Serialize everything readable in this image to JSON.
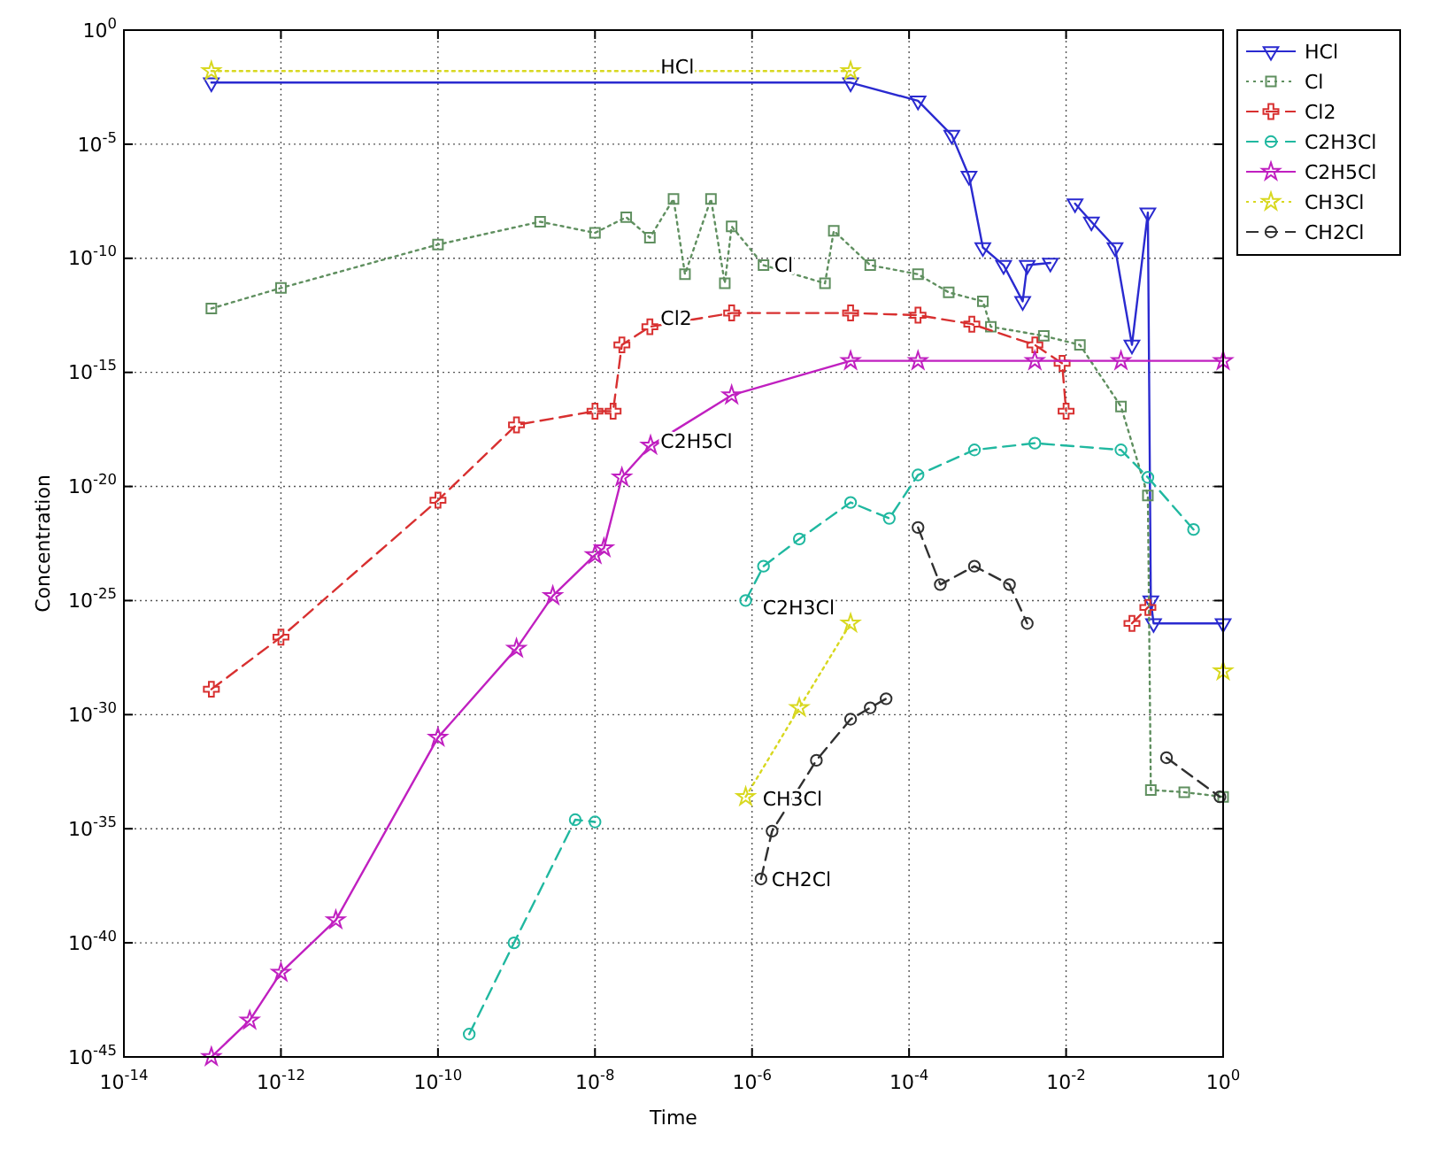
{
  "chart_data": {
    "type": "line",
    "xlabel": "Time",
    "ylabel": "Concentration",
    "log": "xy",
    "grid": true,
    "legend": "top right",
    "xlim": [
      1e-14,
      1
    ],
    "ylim": [
      1e-45,
      1
    ],
    "xticks": [
      {
        "value": 1e-14,
        "label": "10$^{-14}$"
      },
      {
        "value": 1e-12,
        "label": "10$^{-12}$"
      },
      {
        "value": 1e-10,
        "label": "10$^{-10}$"
      },
      {
        "value": 1e-08,
        "label": "10$^{-8}$"
      },
      {
        "value": 1e-06,
        "label": "10$^{-6}$"
      },
      {
        "value": 0.0001,
        "label": "10$^{-4}$"
      },
      {
        "value": 0.01,
        "label": "10$^{-2}$"
      },
      {
        "value": 1,
        "label": "10$^{0}$"
      }
    ],
    "yticks": [
      {
        "value": 1e-45,
        "label": "10$^{-45}$"
      },
      {
        "value": 1e-40,
        "label": "10$^{-40}$"
      },
      {
        "value": 1e-35,
        "label": "10$^{-35}$"
      },
      {
        "value": 1e-30,
        "label": "10$^{-30}$"
      },
      {
        "value": 1e-25,
        "label": "10$^{-25}$"
      },
      {
        "value": 1e-20,
        "label": "10$^{-20}$"
      },
      {
        "value": 1e-15,
        "label": "10$^{-15}$"
      },
      {
        "value": 1e-10,
        "label": "10$^{-10}$"
      },
      {
        "value": 1e-05,
        "label": "10$^{-5}$"
      },
      {
        "value": 1,
        "label": "10$^{0}$"
      }
    ],
    "series": [
      {
        "name": "HCl",
        "color": "#2a2ad0",
        "marker": "triangle",
        "line_style": "solid",
        "x": [
          1.3e-13,
          1.8e-05,
          0.00013,
          0.00035,
          0.00058,
          0.00087,
          0.0016,
          0.0028,
          0.0032,
          0.0063,
          0.01,
          0.013,
          0.021,
          0.042,
          0.069,
          0.11,
          0.12,
          0.13,
          1
        ],
        "values": [
          0.005,
          0.005,
          0.0008,
          2.5e-05,
          4e-07,
          3e-10,
          5e-11,
          1.3e-12,
          5e-11,
          6.3e-11,
          null,
          2.5e-08,
          4e-09,
          3e-10,
          1.6e-14,
          1e-08,
          1e-25,
          1e-26,
          1e-26
        ]
      },
      {
        "name": "Cl",
        "color": "#5f8f5f",
        "marker": "square",
        "line_style": "dotted",
        "x": [
          1.3e-13,
          1e-12,
          1e-10,
          2e-09,
          1e-08,
          2.5e-08,
          5e-08,
          1e-07,
          1.4e-07,
          3e-07,
          4.5e-07,
          5.5e-07,
          1.4e-06,
          8.5e-06,
          1.1e-05,
          3.2e-05,
          0.00013,
          0.00032,
          0.00087,
          0.0011,
          0.0052,
          0.015,
          0.05,
          0.11,
          0.12,
          0.32,
          1
        ],
        "values": [
          6.3e-13,
          5e-12,
          4e-10,
          4e-09,
          1.3e-09,
          6.3e-09,
          8e-10,
          4e-08,
          2e-11,
          4e-08,
          8e-12,
          2.5e-09,
          5e-11,
          8e-12,
          1.6e-09,
          5e-11,
          2e-11,
          3.2e-12,
          1.3e-12,
          1e-13,
          4e-14,
          1.6e-14,
          3.2e-17,
          4e-21,
          5e-34,
          4e-34,
          2.5e-34
        ]
      },
      {
        "name": "Cl2",
        "color": "#d83030",
        "marker": "cross",
        "line_style": "dashed",
        "x": [
          1.3e-13,
          1e-12,
          1e-10,
          1e-09,
          1e-08,
          1.7e-08,
          2.2e-08,
          5e-08,
          5.5e-07,
          1.8e-05,
          0.00013,
          0.00063,
          0.004,
          0.0089,
          0.01,
          0.05,
          0.069,
          0.11
        ],
        "values": [
          1.3e-29,
          2.5e-27,
          2.5e-21,
          5e-18,
          2e-17,
          2e-17,
          1.6e-14,
          1e-13,
          4e-13,
          4e-13,
          3.2e-13,
          1.3e-13,
          1.6e-14,
          2.5e-15,
          2e-17,
          null,
          1e-26,
          5e-26
        ]
      },
      {
        "name": "C2H3Cl",
        "color": "#20b8a0",
        "marker": "circle",
        "line_style": "dashed",
        "x": [
          2.5e-10,
          9.3e-10,
          5.6e-09,
          1e-08,
          1e-07,
          8.3e-07,
          1.4e-06,
          4e-06,
          1.8e-05,
          5.6e-05,
          0.00013,
          0.00068,
          0.004,
          0.05,
          0.11,
          0.42
        ],
        "values": [
          1e-44,
          1e-40,
          2.5e-35,
          2e-35,
          null,
          1e-25,
          3.2e-24,
          5e-23,
          2e-21,
          4e-22,
          3.2e-20,
          4e-19,
          7.9e-19,
          4e-19,
          2.5e-20,
          1.3e-22
        ]
      },
      {
        "name": "C2H5Cl",
        "color": "#c020c0",
        "marker": "star",
        "line_style": "solid",
        "x": [
          1.3e-13,
          4e-13,
          1e-12,
          5e-12,
          1e-10,
          1e-09,
          2.9e-09,
          1e-08,
          1.3e-08,
          2.2e-08,
          5.1e-08,
          5.5e-07,
          1.8e-05,
          0.00013,
          0.004,
          0.05,
          1
        ],
        "values": [
          1e-45,
          4e-44,
          5e-42,
          1e-39,
          1e-31,
          7.9e-28,
          1.6e-25,
          1e-23,
          2e-23,
          2.5e-20,
          6.3e-19,
          1e-16,
          3.2e-15,
          3.2e-15,
          3.2e-15,
          3.2e-15,
          3.2e-15
        ]
      },
      {
        "name": "CH3Cl",
        "color": "#d8d820",
        "marker": "star",
        "line_style": "dotted",
        "x": [
          1.3e-13,
          1.8e-05,
          1e-06,
          8.3e-07,
          4e-06,
          1.8e-05,
          0.1,
          1
        ],
        "values": [
          0.016,
          0.016,
          null,
          2.5e-34,
          2e-30,
          1e-26,
          null,
          8e-29
        ]
      },
      {
        "name": "CH2Cl",
        "color": "#303030",
        "marker": "circle",
        "line_style": "dashed",
        "x": [
          1.3e-06,
          1.8e-06,
          6.6e-06,
          1.8e-05,
          3.2e-05,
          5.1e-05,
          0.0001,
          0.00013,
          0.00025,
          0.00068,
          0.0019,
          0.0032,
          0.1,
          0.19,
          0.91
        ],
        "values": [
          6.3e-38,
          7.9e-36,
          1e-32,
          6.3e-31,
          2e-30,
          5e-30,
          null,
          1.6e-22,
          5e-25,
          3.2e-24,
          5e-25,
          1e-26,
          null,
          1.3e-32,
          2.5e-34
        ]
      }
    ],
    "annotations": [
      {
        "text": "HCl",
        "x": 5e-08,
        "y": 0.025
      },
      {
        "text": "Cl",
        "x": 1.4e-06,
        "y": 5e-11
      },
      {
        "text": "Cl2",
        "x": 5e-08,
        "y": 2.5e-13
      },
      {
        "text": "C2H5Cl",
        "x": 5e-08,
        "y": 1e-18
      },
      {
        "text": "C2H3Cl",
        "x": 1e-06,
        "y": 5e-26
      },
      {
        "text": "CH3Cl",
        "x": 1e-06,
        "y": 2e-34
      },
      {
        "text": "CH2Cl",
        "x": 1.3e-06,
        "y": 6.3e-38
      }
    ]
  }
}
